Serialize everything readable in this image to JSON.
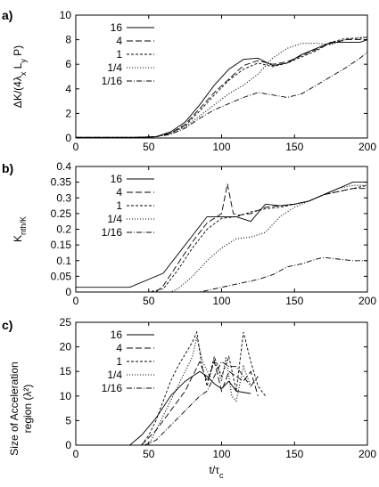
{
  "chart_data": [
    {
      "type": "line",
      "panel_label": "a)",
      "ylabel": "ΔK/(4λ_x L_y P)",
      "xlim": [
        0,
        200
      ],
      "ylim": [
        0,
        10
      ],
      "x_ticks": [
        "0",
        "50",
        "100",
        "150",
        "200"
      ],
      "y_ticks": [
        "0",
        "2",
        "4",
        "6",
        "8",
        "10"
      ],
      "legend_placement": "top-left",
      "series": [
        {
          "name": "16",
          "style": "solid",
          "points": [
            [
              0,
              0.05
            ],
            [
              40,
              0.05
            ],
            [
              55,
              0.1
            ],
            [
              65,
              0.5
            ],
            [
              75,
              1.3
            ],
            [
              85,
              2.7
            ],
            [
              95,
              4.3
            ],
            [
              105,
              5.6
            ],
            [
              115,
              6.4
            ],
            [
              125,
              6.5
            ],
            [
              135,
              5.9
            ],
            [
              145,
              6.1
            ],
            [
              155,
              6.8
            ],
            [
              165,
              7.3
            ],
            [
              175,
              7.8
            ],
            [
              185,
              7.8
            ],
            [
              195,
              7.8
            ],
            [
              200,
              8.0
            ]
          ]
        },
        {
          "name": "4",
          "style": "dashed",
          "points": [
            [
              0,
              0.05
            ],
            [
              40,
              0.05
            ],
            [
              55,
              0.1
            ],
            [
              65,
              0.4
            ],
            [
              75,
              1.1
            ],
            [
              85,
              2.4
            ],
            [
              95,
              3.7
            ],
            [
              105,
              4.8
            ],
            [
              115,
              5.9
            ],
            [
              125,
              6.3
            ],
            [
              135,
              6.0
            ],
            [
              145,
              6.2
            ],
            [
              155,
              6.7
            ],
            [
              165,
              7.2
            ],
            [
              175,
              7.7
            ],
            [
              185,
              8.0
            ],
            [
              195,
              8.0
            ],
            [
              200,
              8.0
            ]
          ]
        },
        {
          "name": "1",
          "style": "short-dashed",
          "points": [
            [
              0,
              0.05
            ],
            [
              40,
              0.05
            ],
            [
              55,
              0.1
            ],
            [
              65,
              0.4
            ],
            [
              75,
              1.0
            ],
            [
              85,
              2.2
            ],
            [
              95,
              3.5
            ],
            [
              105,
              4.7
            ],
            [
              115,
              5.6
            ],
            [
              125,
              6.1
            ],
            [
              135,
              5.8
            ],
            [
              145,
              6.1
            ],
            [
              155,
              6.6
            ],
            [
              165,
              7.1
            ],
            [
              175,
              7.8
            ],
            [
              185,
              8.1
            ],
            [
              195,
              8.1
            ],
            [
              200,
              8.2
            ]
          ]
        },
        {
          "name": "1/4",
          "style": "dotted",
          "points": [
            [
              0,
              0.05
            ],
            [
              40,
              0.05
            ],
            [
              55,
              0.1
            ],
            [
              65,
              0.4
            ],
            [
              75,
              0.9
            ],
            [
              85,
              1.8
            ],
            [
              95,
              2.7
            ],
            [
              105,
              3.6
            ],
            [
              115,
              4.3
            ],
            [
              125,
              5.2
            ],
            [
              135,
              6.5
            ],
            [
              145,
              7.3
            ],
            [
              155,
              7.7
            ],
            [
              165,
              7.7
            ],
            [
              175,
              7.6
            ],
            [
              185,
              8.0
            ],
            [
              195,
              8.2
            ],
            [
              200,
              8.2
            ]
          ]
        },
        {
          "name": "1/16",
          "style": "dash-dot",
          "points": [
            [
              0,
              0.05
            ],
            [
              40,
              0.05
            ],
            [
              55,
              0.1
            ],
            [
              65,
              0.3
            ],
            [
              75,
              0.8
            ],
            [
              85,
              1.6
            ],
            [
              95,
              2.3
            ],
            [
              105,
              2.8
            ],
            [
              115,
              3.3
            ],
            [
              125,
              3.7
            ],
            [
              135,
              3.5
            ],
            [
              145,
              3.3
            ],
            [
              155,
              3.6
            ],
            [
              165,
              4.3
            ],
            [
              175,
              5.0
            ],
            [
              185,
              5.7
            ],
            [
              195,
              6.5
            ],
            [
              200,
              7.0
            ]
          ]
        }
      ]
    },
    {
      "type": "line",
      "panel_label": "b)",
      "ylabel": "K_nth/K",
      "xlim": [
        0,
        200
      ],
      "ylim": [
        0,
        0.4
      ],
      "x_ticks": [
        "0",
        "50",
        "100",
        "150",
        "200"
      ],
      "y_ticks": [
        "0",
        "0.05",
        "0.1",
        "0.15",
        "0.2",
        "0.25",
        "0.3",
        "0.35",
        "0.4"
      ],
      "legend_placement": "top-left",
      "series": [
        {
          "name": "16",
          "style": "solid",
          "points": [
            [
              0,
              0.015
            ],
            [
              37,
              0.015
            ],
            [
              60,
              0.06
            ],
            [
              70,
              0.12
            ],
            [
              80,
              0.18
            ],
            [
              90,
              0.24
            ],
            [
              100,
              0.24
            ],
            [
              110,
              0.24
            ],
            [
              120,
              0.225
            ],
            [
              130,
              0.28
            ],
            [
              140,
              0.275
            ],
            [
              150,
              0.28
            ],
            [
              160,
              0.29
            ],
            [
              170,
              0.31
            ],
            [
              180,
              0.33
            ],
            [
              190,
              0.35
            ],
            [
              200,
              0.35
            ]
          ]
        },
        {
          "name": "4",
          "style": "dashed",
          "points": [
            [
              0,
              0
            ],
            [
              55,
              0
            ],
            [
              60,
              0.02
            ],
            [
              70,
              0.09
            ],
            [
              80,
              0.16
            ],
            [
              90,
              0.22
            ],
            [
              100,
              0.25
            ],
            [
              104,
              0.345
            ],
            [
              108,
              0.25
            ],
            [
              112,
              0.245
            ],
            [
              120,
              0.25
            ],
            [
              130,
              0.27
            ],
            [
              140,
              0.275
            ],
            [
              150,
              0.28
            ],
            [
              160,
              0.29
            ],
            [
              170,
              0.31
            ],
            [
              180,
              0.32
            ],
            [
              190,
              0.33
            ],
            [
              200,
              0.33
            ]
          ]
        },
        {
          "name": "1",
          "style": "short-dashed",
          "points": [
            [
              0,
              0
            ],
            [
              50,
              0
            ],
            [
              60,
              0.01
            ],
            [
              70,
              0.07
            ],
            [
              80,
              0.14
            ],
            [
              90,
              0.2
            ],
            [
              100,
              0.235
            ],
            [
              110,
              0.24
            ],
            [
              120,
              0.255
            ],
            [
              130,
              0.265
            ],
            [
              140,
              0.27
            ],
            [
              150,
              0.28
            ],
            [
              160,
              0.29
            ],
            [
              170,
              0.31
            ],
            [
              180,
              0.32
            ],
            [
              190,
              0.33
            ],
            [
              200,
              0.34
            ]
          ]
        },
        {
          "name": "1/4",
          "style": "dotted",
          "points": [
            [
              0,
              0
            ],
            [
              65,
              0
            ],
            [
              70,
              0.01
            ],
            [
              80,
              0.05
            ],
            [
              90,
              0.1
            ],
            [
              100,
              0.14
            ],
            [
              110,
              0.17
            ],
            [
              120,
              0.175
            ],
            [
              130,
              0.19
            ],
            [
              140,
              0.24
            ],
            [
              150,
              0.27
            ],
            [
              160,
              0.29
            ],
            [
              170,
              0.31
            ],
            [
              180,
              0.33
            ],
            [
              190,
              0.34
            ],
            [
              200,
              0.34
            ]
          ]
        },
        {
          "name": "1/16",
          "style": "dash-dot",
          "points": [
            [
              0,
              0
            ],
            [
              85,
              0
            ],
            [
              95,
              0.01
            ],
            [
              105,
              0.02
            ],
            [
              115,
              0.03
            ],
            [
              125,
              0.04
            ],
            [
              135,
              0.055
            ],
            [
              145,
              0.08
            ],
            [
              155,
              0.09
            ],
            [
              165,
              0.105
            ],
            [
              170,
              0.11
            ],
            [
              180,
              0.105
            ],
            [
              190,
              0.1
            ],
            [
              200,
              0.1
            ]
          ]
        }
      ]
    },
    {
      "type": "line",
      "panel_label": "c)",
      "ylabel": "Size of Acceleration region (λ²)",
      "xlabel": "t/τ_c",
      "xlim": [
        0,
        200
      ],
      "ylim": [
        0,
        25
      ],
      "x_ticks": [
        "0",
        "50",
        "100",
        "150",
        "200"
      ],
      "y_ticks": [
        "0",
        "5",
        "10",
        "15",
        "20",
        "25"
      ],
      "legend_placement": "top-left",
      "series": [
        {
          "name": "16",
          "style": "solid",
          "points": [
            [
              37,
              0
            ],
            [
              45,
              2
            ],
            [
              55,
              5.5
            ],
            [
              65,
              10
            ],
            [
              75,
              13
            ],
            [
              85,
              15
            ],
            [
              90,
              14
            ],
            [
              95,
              12.5
            ],
            [
              100,
              11.5
            ],
            [
              105,
              13
            ],
            [
              110,
              11
            ],
            [
              120,
              10.5
            ]
          ]
        },
        {
          "name": "4",
          "style": "dashed",
          "points": [
            [
              45,
              0
            ],
            [
              55,
              3
            ],
            [
              65,
              7
            ],
            [
              75,
              11
            ],
            [
              80,
              14
            ],
            [
              85,
              17
            ],
            [
              90,
              13
            ],
            [
              95,
              17
            ],
            [
              100,
              11
            ],
            [
              105,
              15
            ],
            [
              110,
              14
            ],
            [
              115,
              13
            ],
            [
              120,
              15
            ],
            [
              125,
              10
            ]
          ]
        },
        {
          "name": "1",
          "style": "short-dashed",
          "points": [
            [
              45,
              0
            ],
            [
              50,
              2
            ],
            [
              55,
              5
            ],
            [
              60,
              9
            ],
            [
              65,
              13
            ],
            [
              70,
              16
            ],
            [
              75,
              18.5
            ],
            [
              80,
              21
            ],
            [
              83,
              23
            ],
            [
              86,
              17
            ],
            [
              90,
              12
            ],
            [
              95,
              18
            ],
            [
              100,
              14
            ],
            [
              105,
              18
            ],
            [
              110,
              11
            ],
            [
              115,
              23
            ],
            [
              120,
              17
            ],
            [
              125,
              12
            ],
            [
              130,
              10
            ]
          ]
        },
        {
          "name": "1/4",
          "style": "dotted",
          "points": [
            [
              50,
              0
            ],
            [
              55,
              3
            ],
            [
              60,
              6
            ],
            [
              65,
              9
            ],
            [
              70,
              12
            ],
            [
              75,
              15
            ],
            [
              80,
              18
            ],
            [
              83,
              22
            ],
            [
              87,
              17
            ],
            [
              92,
              14
            ],
            [
              95,
              17.5
            ],
            [
              100,
              13
            ],
            [
              103,
              18
            ],
            [
              107,
              10
            ],
            [
              110,
              9
            ],
            [
              115,
              16
            ],
            [
              120,
              12
            ]
          ]
        },
        {
          "name": "1/16",
          "style": "dash-dot",
          "points": [
            [
              47,
              0
            ],
            [
              55,
              1
            ],
            [
              65,
              4
            ],
            [
              75,
              7
            ],
            [
              85,
              10
            ],
            [
              90,
              11
            ],
            [
              95,
              14
            ],
            [
              100,
              17
            ],
            [
              105,
              16
            ],
            [
              110,
              16
            ],
            [
              115,
              14
            ],
            [
              120,
              12
            ],
            [
              125,
              14
            ]
          ]
        }
      ]
    }
  ]
}
